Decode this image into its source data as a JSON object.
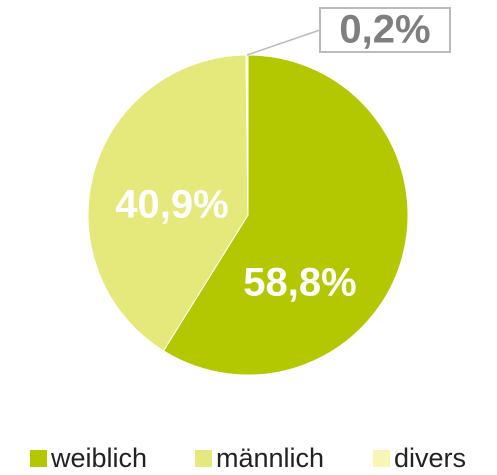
{
  "chart_data": {
    "type": "pie",
    "categories": [
      "weiblich",
      "männlich",
      "divers"
    ],
    "values": [
      58.8,
      40.9,
      0.2
    ],
    "value_labels": [
      "58,8%",
      "40,9%",
      "0,2%"
    ],
    "colors": [
      "#b3c800",
      "#e5e87a",
      "#f8f6b4"
    ],
    "legend": "bottom"
  }
}
